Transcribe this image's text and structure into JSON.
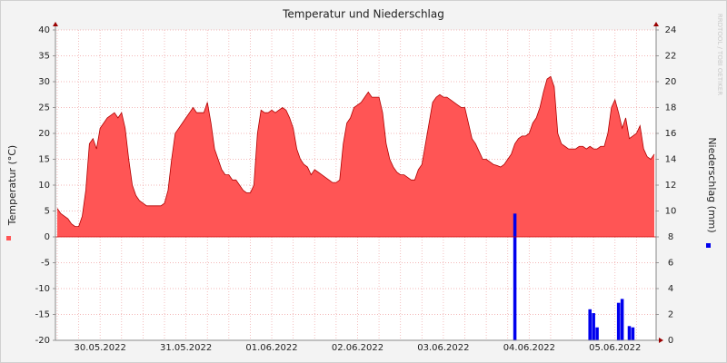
{
  "chart_data": {
    "type": "combo",
    "title": "Temperatur und Niederschlag",
    "ylabel": "Temperatur (°C)",
    "y2label": "Niederschlag (mm)",
    "watermark": "RRDTOOL / TOBI OETIKER",
    "grid": true,
    "categories": [
      null,
      null,
      null,
      null,
      null,
      null,
      null,
      null,
      null,
      null,
      null,
      null,
      "30.05.2022",
      null,
      null,
      null,
      null,
      null,
      null,
      null,
      null,
      null,
      null,
      null,
      null,
      null,
      null,
      null,
      null,
      null,
      null,
      null,
      null,
      null,
      null,
      null,
      "31.05.2022",
      null,
      null,
      null,
      null,
      null,
      null,
      null,
      null,
      null,
      null,
      null,
      null,
      null,
      null,
      null,
      null,
      null,
      null,
      null,
      null,
      null,
      null,
      null,
      "01.06.2022",
      null,
      null,
      null,
      null,
      null,
      null,
      null,
      null,
      null,
      null,
      null,
      null,
      null,
      null,
      null,
      null,
      null,
      null,
      null,
      null,
      null,
      null,
      null,
      "02.06.2022",
      null,
      null,
      null,
      null,
      null,
      null,
      null,
      null,
      null,
      null,
      null,
      null,
      null,
      null,
      null,
      null,
      null,
      null,
      null,
      null,
      null,
      null,
      null,
      "03.06.2022",
      null,
      null,
      null,
      null,
      null,
      null,
      null,
      null,
      null,
      null,
      null,
      null,
      null,
      null,
      null,
      null,
      null,
      null,
      null,
      null,
      null,
      null,
      null,
      "04.06.2022",
      null,
      null,
      null,
      null,
      null,
      null,
      null,
      null,
      null,
      null,
      null,
      null,
      null,
      null,
      null,
      null,
      null,
      null,
      null,
      null,
      null,
      null,
      null,
      "05.06.2022",
      null,
      null,
      null,
      null,
      null,
      null,
      null,
      null,
      null,
      null,
      null
    ],
    "ylim": [
      -20,
      40
    ],
    "yticks": [
      -20,
      -15,
      -10,
      -5,
      0,
      5,
      10,
      15,
      20,
      25,
      30,
      35,
      40
    ],
    "y2lim": [
      0,
      24
    ],
    "y2ticks": [
      0,
      2,
      4,
      6,
      8,
      10,
      12,
      14,
      16,
      18,
      20,
      22,
      24
    ],
    "series": [
      {
        "type": "area",
        "color": "#ff5555",
        "line_color": "#b00000",
        "values": [
          5.5,
          4.5,
          4,
          3.5,
          2.5,
          2,
          2,
          4,
          9,
          18,
          19,
          17,
          21,
          22,
          23,
          23.5,
          24,
          23,
          24,
          21,
          15,
          10,
          8,
          7,
          6.5,
          6,
          6,
          6,
          6,
          6,
          6.5,
          9,
          15,
          20,
          21,
          22,
          23,
          24,
          25,
          24,
          24,
          24,
          26,
          22,
          17,
          15,
          13,
          12,
          12,
          11,
          11,
          10,
          9,
          8.5,
          8.5,
          10,
          20,
          24.5,
          24,
          24,
          24.5,
          24,
          24.5,
          25,
          24.5,
          23,
          21,
          17,
          15,
          14,
          13.5,
          12,
          13,
          12.5,
          12,
          11.5,
          11,
          10.5,
          10.5,
          11,
          18,
          22,
          23,
          25,
          25.5,
          26,
          27,
          28,
          27,
          27,
          27,
          24,
          18,
          15,
          13.5,
          12.5,
          12,
          12,
          11.5,
          11,
          11,
          13,
          14,
          18,
          22,
          26,
          27,
          27.5,
          27,
          27,
          26.5,
          26,
          25.5,
          25,
          25,
          22,
          19,
          18,
          16.5,
          15,
          15,
          14.5,
          14,
          13.8,
          13.5,
          14,
          15,
          16,
          18,
          19,
          19.5,
          19.5,
          20,
          22,
          23,
          25,
          28,
          30.5,
          31,
          29,
          20,
          18,
          17.5,
          17,
          17,
          17,
          17.5,
          17.5,
          17,
          17.5,
          17,
          17,
          17.5,
          17.5,
          20,
          25,
          26.5,
          24,
          21,
          23,
          19,
          19.5,
          20,
          21.5,
          17,
          15.5,
          15,
          16
        ]
      },
      {
        "type": "bar",
        "axis": "y2",
        "color": "#0000ee",
        "values": [
          0,
          0,
          0,
          0,
          0,
          0,
          0,
          0,
          0,
          0,
          0,
          0,
          0,
          0,
          0,
          0,
          0,
          0,
          0,
          0,
          0,
          0,
          0,
          0,
          0,
          0,
          0,
          0,
          0,
          0,
          0,
          0,
          0,
          0,
          0,
          0,
          0,
          0,
          0,
          0,
          0,
          0,
          0,
          0,
          0,
          0,
          0,
          0,
          0,
          0,
          0,
          0,
          0,
          0,
          0,
          0,
          0,
          0,
          0,
          0,
          0,
          0,
          0,
          0,
          0,
          0,
          0,
          0,
          0,
          0,
          0,
          0,
          0,
          0,
          0,
          0,
          0,
          0,
          0,
          0,
          0,
          0,
          0,
          0,
          0,
          0,
          0,
          0,
          0,
          0,
          0,
          0,
          0,
          0,
          0,
          0,
          0,
          0,
          0,
          0,
          0,
          0,
          0,
          0,
          0,
          0,
          0,
          0,
          0,
          0,
          0,
          0,
          0,
          0,
          0,
          0,
          0,
          0,
          0,
          0,
          0,
          0,
          0,
          0,
          0,
          0,
          0,
          0,
          9.8,
          0,
          0,
          0,
          0,
          0,
          0,
          0,
          0,
          0,
          0,
          0,
          0,
          0,
          0,
          0,
          0,
          0,
          0,
          0,
          0,
          2.4,
          2.1,
          1.0,
          0,
          0,
          0,
          0,
          0,
          2.9,
          3.2,
          0,
          1.1,
          1.0,
          0,
          0,
          0,
          0,
          0,
          0
        ]
      }
    ]
  }
}
